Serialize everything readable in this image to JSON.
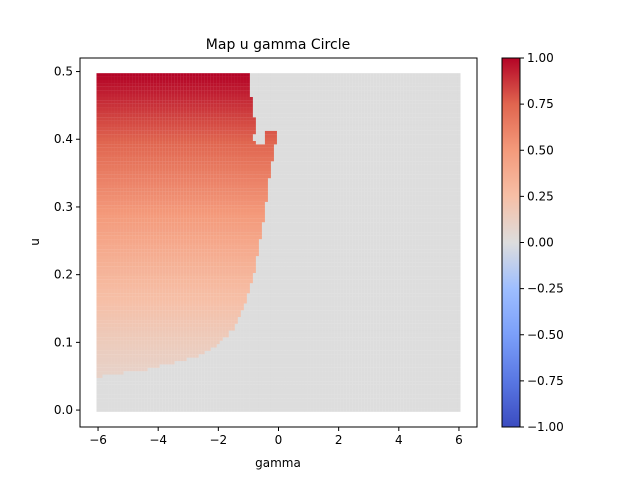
{
  "chart_data": {
    "type": "heatmap",
    "title": "Map u gamma Circle",
    "xlabel": "gamma",
    "ylabel": "u",
    "xlim": [
      -6.6,
      6.6
    ],
    "ylim": [
      -0.025,
      0.52
    ],
    "xticks": [
      -6,
      -4,
      -2,
      0,
      2,
      4,
      6
    ],
    "xtick_labels": [
      "−6",
      "−4",
      "−2",
      "0",
      "2",
      "4",
      "6"
    ],
    "yticks": [
      0.0,
      0.1,
      0.2,
      0.3,
      0.4,
      0.5
    ],
    "ytick_labels": [
      "0.0",
      "0.1",
      "0.2",
      "0.3",
      "0.4",
      "0.5"
    ],
    "grid": false,
    "colormap": "coolwarm",
    "colorbar": {
      "range": [
        -1.0,
        1.0
      ],
      "ticks": [
        1.0,
        0.75,
        0.5,
        0.25,
        0.0,
        -0.25,
        -0.5,
        -0.75,
        -1.0
      ],
      "tick_labels": [
        "1.00",
        "0.75",
        "0.50",
        "0.25",
        "0.00",
        "−0.25",
        "−0.50",
        "−0.75",
        "−1.00"
      ]
    },
    "grid_extent": {
      "gamma": [
        -6.0,
        6.0
      ],
      "u": [
        0.0,
        0.495
      ],
      "n_gamma": 121,
      "n_u": 100
    },
    "positive_region": [
      {
        "u": 0.05,
        "gamma_max": -5.9
      },
      {
        "u": 0.06,
        "gamma_max": -4.4
      },
      {
        "u": 0.08,
        "gamma_max": -2.6
      },
      {
        "u": 0.1,
        "gamma_max": -1.9
      },
      {
        "u": 0.12,
        "gamma_max": -1.5
      },
      {
        "u": 0.15,
        "gamma_max": -1.15
      },
      {
        "u": 0.2,
        "gamma_max": -0.82
      },
      {
        "u": 0.25,
        "gamma_max": -0.6
      },
      {
        "u": 0.3,
        "gamma_max": -0.42
      },
      {
        "u": 0.35,
        "gamma_max": -0.27
      },
      {
        "u": 0.38,
        "gamma_max": -0.15
      },
      {
        "u": 0.4,
        "gamma_max": -0.05
      },
      {
        "u": 0.41,
        "gamma_max": -0.05
      }
    ],
    "notch": [
      {
        "u": 0.385,
        "gamma": -0.55
      },
      {
        "u": 0.4,
        "gamma": -0.85
      },
      {
        "u": 0.42,
        "gamma": -0.75
      },
      {
        "u": 0.45,
        "gamma": -0.85
      },
      {
        "u": 0.475,
        "gamma": -0.95
      }
    ],
    "value_scale": {
      "u_min": 0.05,
      "u_max": 0.495,
      "value_at_min": 0.1,
      "value_at_max": 1.0,
      "exponent": 1.3
    },
    "fill_value": 0.0,
    "colors": {
      "positive_high": "#b40426",
      "neutral": "#dddddd",
      "negative_low": "#3b4cc0"
    }
  }
}
